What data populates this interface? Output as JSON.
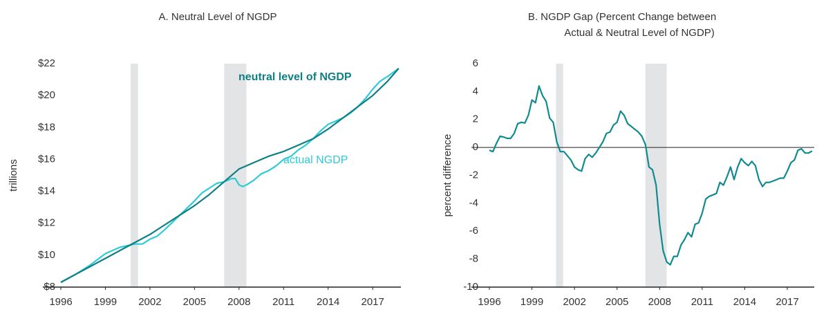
{
  "chart_data": [
    {
      "type": "line",
      "title": [
        "A.   Neutral Level of NGDP"
      ],
      "y_label": "trillions",
      "xlim": [
        1996,
        2018.9
      ],
      "ylim": [
        8,
        22
      ],
      "xticks": [
        1996,
        1999,
        2002,
        2005,
        2008,
        2011,
        2014,
        2017
      ],
      "yticks": [
        {
          "value": 8,
          "label": "$8"
        },
        {
          "value": 10,
          "label": "$10"
        },
        {
          "value": 12,
          "label": "$12"
        },
        {
          "value": 14,
          "label": "$14"
        },
        {
          "value": 16,
          "label": "$16"
        },
        {
          "value": 18,
          "label": "$18"
        },
        {
          "value": 20,
          "label": "$20"
        },
        {
          "value": 22,
          "label": "$22"
        }
      ],
      "shaded_periods": [
        [
          2000.7,
          2001.2
        ],
        [
          2007.0,
          2008.5
        ]
      ],
      "series": [
        {
          "name": "actual NGDP",
          "color": "#2ccbd6",
          "x": [
            1996,
            1997,
            1998,
            1999,
            1999.5,
            2000,
            2000.5,
            2001,
            2001.5,
            2002,
            2002.5,
            2003,
            2004,
            2005,
            2005.5,
            2006,
            2006.5,
            2007,
            2007.5,
            2007.75,
            2008,
            2008.25,
            2008.5,
            2009,
            2009.5,
            2010,
            2010.5,
            2011,
            2011.5,
            2012,
            2012.5,
            2013,
            2013.5,
            2014,
            2014.5,
            2015,
            2015.5,
            2016,
            2016.5,
            2017,
            2017.5,
            2018,
            2018.75
          ],
          "values": [
            8.3,
            8.8,
            9.4,
            10.1,
            10.3,
            10.5,
            10.6,
            10.7,
            10.7,
            11.0,
            11.2,
            11.6,
            12.5,
            13.4,
            13.9,
            14.2,
            14.5,
            14.6,
            14.8,
            14.8,
            14.4,
            14.3,
            14.4,
            14.7,
            15.1,
            15.3,
            15.6,
            16.0,
            16.2,
            16.6,
            16.9,
            17.3,
            17.8,
            18.2,
            18.4,
            18.6,
            18.9,
            19.3,
            19.8,
            20.4,
            20.9,
            21.2,
            21.7
          ]
        },
        {
          "name": "neutral level of NGDP",
          "color": "#0f7f86",
          "x": [
            1996,
            1997,
            1998,
            1999,
            2000,
            2001,
            2002,
            2003,
            2004,
            2005,
            2006,
            2007,
            2008,
            2009,
            2010,
            2011,
            2012,
            2013,
            2014,
            2015,
            2016,
            2017,
            2018,
            2018.75
          ],
          "values": [
            8.3,
            8.8,
            9.3,
            9.8,
            10.3,
            10.8,
            11.3,
            11.9,
            12.5,
            13.1,
            13.8,
            14.6,
            15.4,
            15.8,
            16.2,
            16.5,
            16.9,
            17.3,
            17.9,
            18.6,
            19.3,
            20.0,
            20.9,
            21.7
          ]
        }
      ]
    },
    {
      "type": "line",
      "title": [
        "B.   NGDP Gap (Percent Change between",
        "Actual & Neutral Level of NGDP)"
      ],
      "y_label": "percent difference",
      "xlim": [
        1996,
        2018.9
      ],
      "ylim": [
        -10,
        6
      ],
      "xticks": [
        1996,
        1999,
        2002,
        2005,
        2008,
        2011,
        2014,
        2017
      ],
      "yticks": [
        -10,
        -8,
        -6,
        -4,
        -2,
        0,
        2,
        4,
        6
      ],
      "shaded_periods": [
        [
          2000.7,
          2001.2
        ],
        [
          2007.0,
          2008.5
        ]
      ],
      "series": [
        {
          "color": "#0f8a8f",
          "x": [
            1996,
            1996.25,
            1996.5,
            1996.75,
            1997,
            1997.25,
            1997.5,
            1997.75,
            1998,
            1998.25,
            1998.5,
            1998.75,
            1999,
            1999.25,
            1999.5,
            1999.75,
            2000,
            2000.25,
            2000.5,
            2000.75,
            2001,
            2001.25,
            2001.5,
            2001.75,
            2002,
            2002.25,
            2002.5,
            2002.75,
            2003,
            2003.25,
            2003.5,
            2003.75,
            2004,
            2004.25,
            2004.5,
            2004.75,
            2005,
            2005.25,
            2005.5,
            2005.75,
            2006,
            2006.25,
            2006.5,
            2006.75,
            2007,
            2007.25,
            2007.5,
            2007.75,
            2008,
            2008.25,
            2008.5,
            2008.75,
            2009,
            2009.25,
            2009.5,
            2009.75,
            2010,
            2010.25,
            2010.5,
            2010.75,
            2011,
            2011.25,
            2011.5,
            2011.75,
            2012,
            2012.25,
            2012.5,
            2012.75,
            2013,
            2013.25,
            2013.5,
            2013.75,
            2014,
            2014.25,
            2014.5,
            2014.75,
            2015,
            2015.25,
            2015.5,
            2015.75,
            2016,
            2016.25,
            2016.5,
            2016.75,
            2017,
            2017.25,
            2017.5,
            2017.75,
            2018,
            2018.25,
            2018.5,
            2018.75
          ],
          "values": [
            -0.2,
            -0.3,
            0.3,
            0.8,
            0.75,
            0.65,
            0.65,
            1.0,
            1.7,
            1.8,
            1.75,
            2.3,
            3.4,
            3.2,
            4.4,
            3.7,
            3.3,
            2.1,
            1.8,
            0.4,
            -0.3,
            -0.3,
            -0.6,
            -0.9,
            -1.4,
            -1.6,
            -1.7,
            -0.8,
            -0.5,
            -0.7,
            -0.4,
            0.0,
            0.4,
            1.0,
            1.1,
            1.6,
            1.8,
            2.6,
            2.3,
            1.7,
            1.5,
            1.3,
            1.1,
            0.8,
            0.2,
            -1.4,
            -1.6,
            -2.7,
            -5.5,
            -7.4,
            -8.2,
            -8.4,
            -7.8,
            -7.8,
            -7.0,
            -6.6,
            -6.1,
            -6.4,
            -5.5,
            -5.4,
            -4.7,
            -3.7,
            -3.5,
            -3.4,
            -3.3,
            -2.5,
            -2.7,
            -2.1,
            -1.4,
            -2.3,
            -1.4,
            -0.8,
            -1.1,
            -1.3,
            -1.0,
            -1.3,
            -2.3,
            -2.8,
            -2.5,
            -2.5,
            -2.4,
            -2.3,
            -2.2,
            -2.2,
            -1.7,
            -1.1,
            -0.9,
            -0.2,
            -0.1,
            -0.4,
            -0.4,
            -0.25
          ]
        }
      ],
      "reference_line": 0
    }
  ]
}
